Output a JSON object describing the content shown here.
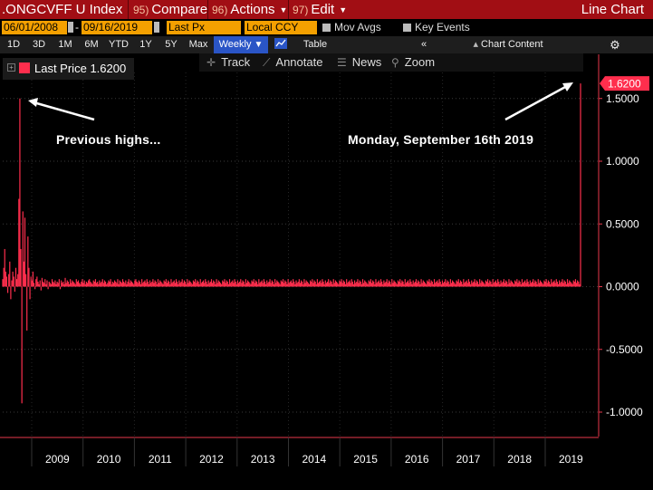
{
  "toolbar": {
    "ticker": ".ONGCVFF U Index",
    "compare_num": "95)",
    "compare_label": "Compare",
    "actions_num": "96)",
    "actions_label": "Actions",
    "edit_num": "97)",
    "edit_label": "Edit",
    "chart_type": "Line Chart"
  },
  "range": {
    "start_date": "06/01/2008",
    "end_date": "09/16/2019",
    "field": "Last Px",
    "currency": "Local CCY",
    "mov_avgs": "Mov Avgs",
    "key_events": "Key Events"
  },
  "periods": [
    "1D",
    "3D",
    "1M",
    "6M",
    "YTD",
    "1Y",
    "5Y",
    "Max"
  ],
  "frequency": "Weekly",
  "table_label": "Table",
  "chart_content_label": "Chart Content",
  "tools": {
    "track": "Track",
    "annotate": "Annotate",
    "news": "News",
    "zoom": "Zoom"
  },
  "legend": {
    "label": "Last Price",
    "value": "1.6200"
  },
  "annotations": {
    "left": "Previous highs...",
    "right": "Monday, September 16th 2019"
  },
  "colors": {
    "series": "#ff2e4d",
    "toolbar": "#a10e14",
    "field": "#f4a000",
    "selected": "#2a55c6"
  },
  "icons": [
    "gear-icon",
    "collapse-icon",
    "line-chart-icon",
    "crosshair-icon",
    "annotate-icon",
    "news-icon",
    "zoom-icon"
  ],
  "chart_data": {
    "type": "bar",
    "title": "",
    "xlabel": "",
    "ylabel": "",
    "ylim": [
      -1.1,
      1.72
    ],
    "yticks": [
      -1.0,
      -0.5,
      0.0,
      0.5,
      1.0,
      1.5
    ],
    "ytick_labels": [
      "-1.0000",
      "-0.5000",
      "0.0000",
      "0.5000",
      "1.0000",
      "1.5000"
    ],
    "xtick_labels": [
      "2009",
      "2010",
      "2011",
      "2012",
      "2013",
      "2014",
      "2015",
      "2016",
      "2017",
      "2018",
      "2019"
    ],
    "last_value": 1.62,
    "last_value_label": "1.6200",
    "series": [
      {
        "name": "Last Price",
        "x_start": "2008-06-01",
        "x_end": "2019-09-16",
        "frequency": "weekly",
        "values": [
          0.06,
          0.15,
          0.3,
          0.12,
          0.08,
          -0.05,
          0.1,
          0.2,
          -0.1,
          0.05,
          0.12,
          0.08,
          -0.04,
          0.15,
          0.06,
          0.1,
          0.7,
          1.5,
          0.3,
          -0.93,
          0.6,
          0.2,
          0.55,
          0.1,
          -0.35,
          0.4,
          0.15,
          -0.1,
          0.08,
          0.05,
          0.12,
          0.03,
          -0.02,
          0.06,
          0.08,
          0.04,
          0.02,
          0.05,
          -0.03,
          0.07,
          0.04,
          0.03,
          0.06,
          0.02,
          0.05,
          -0.02,
          0.04,
          0.03,
          0.02,
          0.06,
          0.04,
          0.03,
          0.05,
          0.02,
          0.04,
          0.03,
          0.06,
          -0.02,
          0.05,
          0.03,
          0.04,
          0.02,
          0.07,
          0.03,
          0.05,
          0.04,
          0.02,
          0.06,
          0.03,
          0.05,
          0.04,
          0.03,
          0.02,
          0.06,
          0.04,
          0.05,
          0.03,
          0.02,
          0.04,
          0.06,
          0.03,
          0.05,
          0.02,
          0.04,
          0.03,
          0.05,
          0.06,
          0.04,
          0.03,
          0.02,
          0.05,
          0.04,
          0.06,
          0.03,
          0.04,
          0.02,
          0.05,
          0.03,
          0.04,
          0.06,
          0.03,
          0.05,
          0.04,
          0.02,
          0.03,
          0.05,
          0.04,
          0.06,
          0.02,
          0.04,
          0.03,
          0.05,
          0.04,
          0.03,
          0.06,
          0.02,
          0.05,
          0.04,
          0.03,
          0.06,
          0.04,
          0.03,
          0.05,
          0.02,
          0.04,
          0.06,
          0.03,
          0.05,
          0.04,
          0.03,
          0.02,
          0.05,
          0.06,
          0.04,
          0.03,
          0.05,
          0.04,
          0.02,
          0.06,
          0.03,
          0.04,
          0.05,
          0.03,
          0.06,
          0.04,
          0.02,
          0.05,
          0.03,
          0.04,
          0.06,
          0.03,
          0.05,
          0.04,
          0.02,
          0.06,
          0.03,
          0.05,
          0.04,
          0.03,
          0.02,
          0.05,
          0.04,
          0.06,
          0.03,
          0.05,
          0.04,
          0.02,
          0.06,
          0.03,
          0.04,
          0.05,
          0.03,
          0.06,
          0.04,
          0.02,
          0.05,
          0.03,
          0.04,
          0.06,
          0.03,
          0.05,
          0.04,
          0.02,
          0.06,
          0.03,
          0.05,
          0.04,
          0.03,
          0.02,
          0.05,
          0.04,
          0.06,
          0.03,
          0.05,
          0.04,
          0.02,
          0.06,
          0.03,
          0.04,
          0.05,
          0.03,
          0.06,
          0.04,
          0.02,
          0.05,
          0.03,
          0.04,
          0.06,
          0.03,
          0.05,
          0.04,
          0.02,
          0.06,
          0.03,
          0.05,
          0.04,
          0.03,
          0.02,
          0.05,
          0.04,
          0.06,
          0.03,
          0.05,
          0.04,
          0.02,
          0.06,
          0.03,
          0.04,
          0.05,
          0.03,
          0.06,
          0.04,
          0.02,
          0.05,
          0.03,
          0.04,
          0.06,
          0.03,
          0.05,
          0.04,
          0.02,
          0.06,
          0.03,
          0.05,
          0.04,
          0.03,
          0.02,
          0.05,
          0.04,
          0.06,
          0.03,
          0.05,
          0.04,
          0.02,
          0.06,
          0.03,
          0.04,
          0.05,
          0.03,
          0.06,
          0.04,
          0.02,
          0.05,
          0.03,
          0.04,
          0.06,
          0.03,
          0.05,
          0.04,
          0.02,
          0.06,
          0.03,
          0.05,
          0.04,
          0.03,
          0.02,
          0.05,
          0.04,
          0.06,
          0.03,
          0.05,
          0.04,
          0.02,
          0.06,
          0.03,
          0.04,
          0.05,
          0.03,
          0.06,
          0.04,
          0.02,
          0.05,
          0.03,
          0.04,
          0.06,
          0.03,
          0.05,
          0.04,
          0.02,
          0.06,
          0.03,
          0.05,
          0.04,
          0.03,
          0.02,
          0.05,
          0.04,
          0.06,
          0.03,
          0.05,
          0.04,
          0.02,
          0.06,
          0.03,
          0.04,
          0.05,
          0.03,
          0.06,
          0.04,
          0.02,
          0.05,
          0.03,
          0.04,
          0.06,
          0.03,
          0.05,
          0.04,
          0.02,
          0.06,
          0.03,
          0.05,
          0.04,
          0.03,
          0.02,
          0.05,
          0.04,
          0.06,
          0.03,
          0.05,
          0.04,
          0.02,
          0.06,
          0.03,
          0.04,
          0.05,
          0.03,
          0.06,
          0.04,
          0.02,
          0.05,
          0.03,
          0.04,
          0.06,
          0.03,
          0.05,
          0.04,
          0.02,
          0.06,
          0.03,
          0.05,
          0.04,
          0.03,
          0.02,
          0.05,
          0.04,
          0.06,
          0.03,
          0.05,
          0.04,
          0.02,
          0.06,
          0.03,
          0.04,
          0.05,
          0.03,
          0.06,
          0.04,
          0.02,
          0.05,
          0.03,
          0.04,
          0.06,
          0.03,
          0.05,
          0.04,
          0.02,
          0.06,
          0.03,
          0.05,
          0.04,
          0.03,
          0.02,
          0.05,
          0.04,
          0.06,
          0.03,
          0.05,
          0.04,
          0.02,
          0.06,
          0.03,
          0.04,
          0.05,
          0.03,
          0.06,
          0.04,
          0.02,
          0.05,
          0.03,
          0.04,
          0.06,
          0.03,
          0.05,
          0.04,
          0.02,
          0.06,
          0.03,
          0.05,
          0.04,
          0.03,
          0.02,
          0.05,
          0.04,
          0.06,
          0.03,
          0.05,
          0.04,
          0.02,
          0.06,
          0.03,
          0.04,
          0.05,
          0.03,
          0.06,
          0.04,
          0.02,
          0.05,
          0.03,
          0.04,
          0.06,
          0.03,
          0.05,
          0.04,
          0.02,
          0.06,
          0.03,
          0.05,
          0.04,
          0.03,
          0.02,
          0.05,
          0.04,
          0.06,
          0.03,
          0.05,
          0.04,
          0.02,
          0.06,
          0.03,
          0.04,
          0.05,
          0.03,
          0.06,
          0.04,
          0.02,
          0.05,
          0.03,
          0.04,
          0.06,
          0.03,
          0.05,
          0.04,
          0.02,
          0.06,
          0.03,
          0.05,
          0.04,
          0.03,
          0.02,
          0.05,
          0.04,
          0.06,
          0.03,
          0.05,
          0.04,
          0.02,
          0.06,
          0.03,
          0.04,
          0.05,
          0.03,
          0.06,
          0.04,
          0.02,
          0.05,
          0.03,
          0.04,
          0.06,
          0.03,
          0.05,
          0.04,
          0.02,
          0.06,
          0.03,
          0.05,
          0.04,
          0.03,
          0.02,
          0.05,
          0.04,
          0.06,
          0.03,
          0.05,
          0.04,
          0.02,
          0.06,
          0.03,
          0.04,
          0.05,
          0.03,
          0.06,
          0.04,
          0.02,
          0.05,
          0.03,
          0.04,
          0.06,
          0.03,
          0.05,
          0.04,
          0.02,
          0.06,
          0.03,
          0.05,
          0.04,
          0.03,
          0.02,
          0.05,
          0.04,
          0.06,
          0.03,
          0.05,
          0.04,
          0.02,
          0.06,
          0.03,
          0.04,
          0.05,
          0.03,
          0.06,
          0.04,
          0.02,
          0.05,
          0.03,
          0.04,
          0.06,
          0.03,
          0.05,
          0.04,
          0.02,
          0.06,
          0.03,
          0.05,
          0.04,
          0.03,
          0.02,
          0.05,
          0.04,
          0.06,
          0.03,
          0.05,
          0.04,
          0.02,
          1.62
        ]
      }
    ]
  }
}
